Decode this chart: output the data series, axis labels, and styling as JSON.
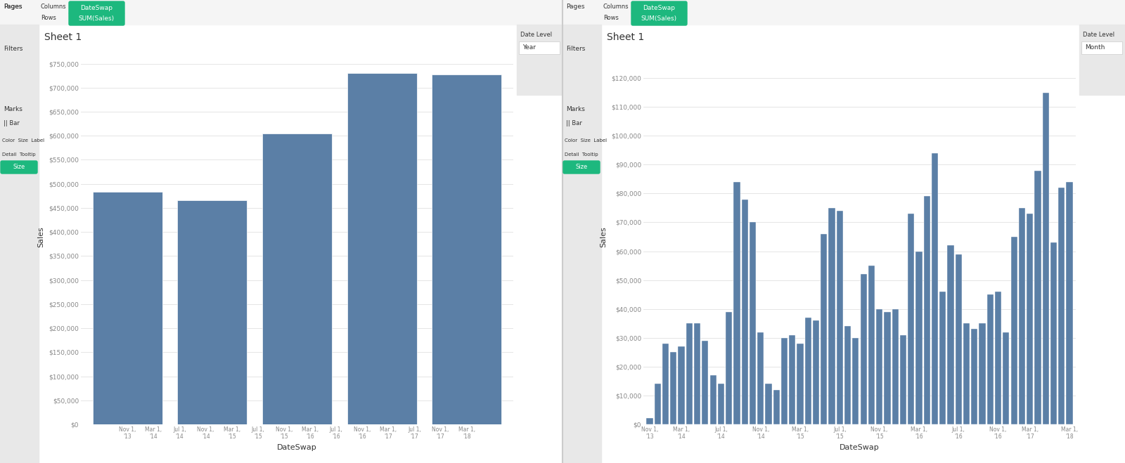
{
  "left_chart": {
    "title": "Sheet 1",
    "xlabel": "DateSwap",
    "ylabel": "Sales",
    "date_level": "Year",
    "bar_color": "#5b7fa6",
    "bar_heights": [
      484000,
      466000,
      604000,
      730000,
      728000
    ],
    "bar_labels": [
      "Mar 1, '14",
      "Mar 1, '15",
      "Mar 1, '16",
      "Mar 1, '17",
      "Nov 1, '17"
    ],
    "xtick_labels_full": [
      "Nov 1,\n'13",
      "Mar 1,\n'14",
      "Jul 1,\n'14",
      "Nov 1,\n'14",
      "Mar 1,\n'15",
      "Jul 1,\n'15",
      "Nov 1,\n'15",
      "Mar 1,\n'16",
      "Jul 1,\n'16",
      "Nov 1,\n'16",
      "Mar 1,\n'17",
      "Jul 1,\n'17",
      "Nov 1,\n'17",
      "Mar 1,\n'18"
    ],
    "yticks": [
      0,
      50000,
      100000,
      150000,
      200000,
      250000,
      300000,
      350000,
      400000,
      450000,
      500000,
      550000,
      600000,
      650000,
      700000,
      750000
    ],
    "ylim": [
      0,
      780000
    ]
  },
  "right_chart": {
    "title": "Sheet 1",
    "xlabel": "DateSwap",
    "ylabel": "Sales",
    "date_level": "Month",
    "bar_color": "#5b7fa6",
    "values": [
      2200,
      14000,
      28000,
      25000,
      27000,
      35000,
      35000,
      29000,
      17000,
      14000,
      39000,
      84000,
      78000,
      70000,
      32000,
      14000,
      12000,
      30000,
      31000,
      28000,
      37000,
      36000,
      66000,
      75000,
      74000,
      34000,
      30000,
      52000,
      55000,
      40000,
      39000,
      40000,
      31000,
      73000,
      60000,
      79000,
      94000,
      46000,
      62000,
      59000,
      35000,
      33000,
      35000,
      45000,
      46000,
      32000,
      65000,
      75000,
      73000,
      88000,
      115000,
      63000,
      82000,
      84000
    ],
    "xtick_positions": [
      0,
      4,
      9,
      14,
      19,
      24,
      29,
      34,
      39,
      44,
      48,
      53
    ],
    "xtick_labels": [
      "Nov 1,\n'13",
      "Mar 1,\n'14",
      "Jul 1,\n'14",
      "Nov 1,\n'14",
      "Mar 1,\n'15",
      "Jul 1,\n'15",
      "Nov 1,\n'15",
      "Mar 1,\n'16",
      "Jul 1,\n'16",
      "Nov 1,\n'16",
      "Mar 1,\n'17",
      "Mar 1,\n'18"
    ],
    "yticks": [
      0,
      10000,
      20000,
      30000,
      40000,
      50000,
      60000,
      70000,
      80000,
      90000,
      100000,
      110000,
      120000
    ],
    "ylim": [
      0,
      130000
    ]
  },
  "bg_color": "#f0f0f0",
  "panel_color": "#ffffff",
  "sidebar_color": "#e8e8e8",
  "header_color": "#f5f5f5",
  "green_color": "#1db87e",
  "divider_color": "#cccccc",
  "text_color": "#333333",
  "tick_color": "#888888"
}
